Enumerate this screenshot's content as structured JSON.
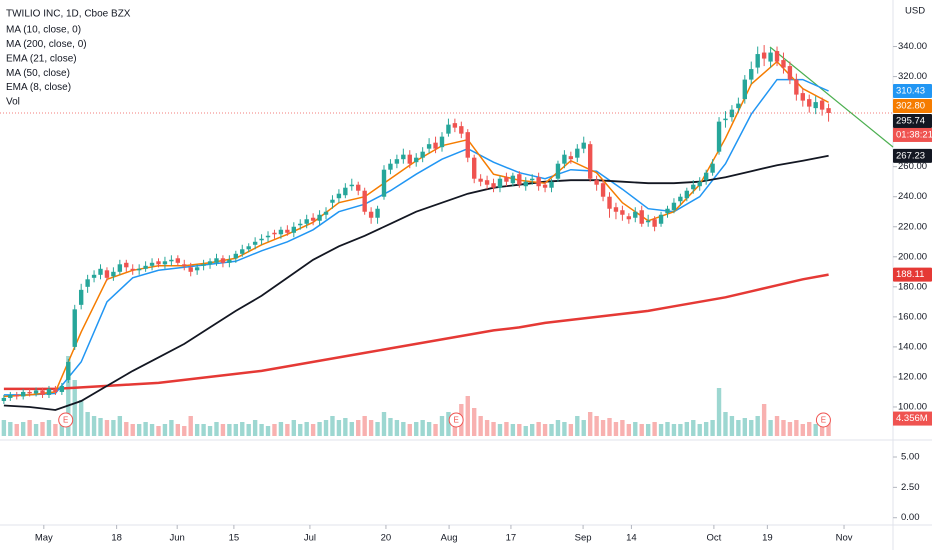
{
  "chart_data": {
    "type": "candlestick",
    "title": "TWILIO INC, 1D, Cboe BZX",
    "currency": "USD",
    "extra_indicator": "MA (10, close, 0)",
    "volume_name": "Vol",
    "countdown": "01:38:21",
    "up_color": "#26a69a",
    "down_color": "#ef5350",
    "open": [
      104,
      106,
      108,
      107,
      110,
      109,
      111,
      108,
      112,
      110,
      118,
      140,
      168,
      180,
      186,
      188,
      191,
      187,
      190,
      196,
      192,
      191,
      192,
      194,
      197,
      195,
      197,
      199,
      195,
      193,
      191,
      194,
      195,
      196,
      199,
      196,
      199,
      202,
      205,
      208,
      211,
      213,
      216,
      215,
      218,
      216,
      221,
      222,
      226,
      224,
      228,
      236,
      239,
      241,
      247,
      248,
      244,
      230,
      226,
      240,
      258,
      262,
      265,
      268,
      263,
      266,
      272,
      276,
      273,
      282,
      289,
      287,
      283,
      266,
      252,
      251,
      249,
      246,
      253,
      249,
      255,
      247,
      251,
      253,
      248,
      246,
      252,
      262,
      267,
      266,
      272,
      275,
      251,
      249,
      240,
      233,
      231,
      227,
      226,
      231,
      223,
      225,
      222,
      229,
      231,
      237,
      239,
      245,
      247,
      251,
      256,
      270,
      291,
      293,
      299,
      305,
      318,
      326,
      336,
      330,
      337,
      331,
      327,
      318,
      309,
      305,
      299,
      304,
      299
    ],
    "high": [
      108,
      110,
      110,
      112,
      112,
      113,
      113,
      114,
      114,
      116,
      132,
      168,
      182,
      188,
      191,
      195,
      193,
      193,
      198,
      198,
      195,
      195,
      197,
      199,
      199,
      200,
      201,
      201,
      198,
      196,
      195,
      198,
      199,
      202,
      201,
      201,
      204,
      208,
      209,
      213,
      215,
      217,
      218,
      220,
      221,
      223,
      225,
      228,
      229,
      231,
      233,
      241,
      245,
      249,
      252,
      250,
      246,
      233,
      234,
      261,
      265,
      268,
      272,
      271,
      269,
      273,
      279,
      280,
      283,
      292,
      292,
      290,
      285,
      268,
      255,
      254,
      252,
      254,
      256,
      256,
      257,
      253,
      255,
      256,
      250,
      252,
      264,
      271,
      270,
      275,
      280,
      277,
      254,
      251,
      243,
      236,
      234,
      229,
      233,
      234,
      228,
      227,
      230,
      234,
      239,
      242,
      246,
      251,
      253,
      258,
      265,
      293,
      297,
      301,
      306,
      321,
      330,
      340,
      341,
      339,
      340,
      336,
      330,
      322,
      312,
      308,
      307,
      306,
      302
    ],
    "low": [
      102,
      104,
      105,
      105,
      107,
      107,
      106,
      106,
      108,
      108,
      116,
      138,
      165,
      176,
      183,
      185,
      184,
      184,
      188,
      190,
      188,
      188,
      190,
      191,
      193,
      192,
      194,
      194,
      191,
      187,
      188,
      191,
      192,
      194,
      193,
      193,
      196,
      200,
      203,
      205,
      208,
      210,
      212,
      212,
      214,
      213,
      218,
      219,
      221,
      221,
      225,
      232,
      236,
      239,
      244,
      241,
      228,
      222,
      222,
      238,
      255,
      259,
      262,
      259,
      260,
      263,
      269,
      269,
      270,
      280,
      283,
      279,
      263,
      249,
      247,
      245,
      243,
      243,
      247,
      247,
      246,
      244,
      248,
      244,
      243,
      243,
      250,
      259,
      262,
      263,
      269,
      250,
      244,
      237,
      226,
      225,
      224,
      222,
      223,
      220,
      220,
      217,
      220,
      226,
      229,
      234,
      237,
      242,
      244,
      248,
      254,
      268,
      286,
      290,
      296,
      302,
      315,
      322,
      327,
      326,
      327,
      322,
      315,
      304,
      300,
      296,
      295,
      294,
      290
    ],
    "close": [
      106,
      108,
      107,
      110,
      109,
      111,
      108,
      112,
      110,
      114,
      130,
      165,
      178,
      185,
      188,
      192,
      186,
      190,
      195,
      193,
      191,
      192,
      194,
      196,
      195,
      197,
      198,
      196,
      194,
      190,
      193,
      195,
      197,
      199,
      196,
      198,
      202,
      205,
      207,
      210,
      212,
      214,
      215,
      218,
      216,
      220,
      222,
      225,
      224,
      228,
      230,
      238,
      242,
      246,
      248,
      244,
      230,
      226,
      232,
      258,
      262,
      265,
      268,
      262,
      266,
      270,
      275,
      272,
      280,
      288,
      286,
      282,
      266,
      252,
      250,
      248,
      246,
      252,
      250,
      254,
      248,
      250,
      252,
      247,
      246,
      250,
      262,
      268,
      265,
      272,
      276,
      252,
      248,
      240,
      232,
      230,
      228,
      225,
      230,
      222,
      224,
      220,
      228,
      232,
      236,
      240,
      244,
      248,
      250,
      256,
      262,
      290,
      292,
      298,
      302,
      318,
      325,
      335,
      332,
      336,
      330,
      326,
      318,
      308,
      304,
      300,
      303,
      298,
      295.74
    ],
    "volume": [
      4,
      3.5,
      3,
      3.5,
      4,
      3,
      3.5,
      4,
      3,
      5,
      20,
      14,
      9,
      6,
      5,
      4.5,
      4,
      4,
      5,
      3.5,
      3,
      3,
      3.5,
      3,
      2.5,
      3,
      4,
      3,
      2.5,
      5,
      3,
      3,
      2.5,
      3.5,
      3,
      3,
      3,
      3.5,
      3,
      4,
      3,
      2.5,
      3,
      3.5,
      3,
      4,
      3,
      3.5,
      3,
      3.5,
      4,
      5,
      4,
      4.5,
      3.5,
      4,
      5,
      4,
      3.5,
      6,
      4.5,
      4,
      3.5,
      3,
      3.5,
      4,
      3.5,
      3,
      5,
      6,
      5,
      8,
      10,
      7,
      5,
      4,
      3.5,
      3,
      3.5,
      3,
      3,
      2.5,
      3,
      3.5,
      3,
      3,
      4,
      3.5,
      3,
      5,
      4,
      6,
      5,
      4,
      4.5,
      3.5,
      4,
      3,
      3.5,
      3,
      3,
      3.5,
      3,
      3.5,
      3,
      3,
      3.5,
      4,
      3,
      3.5,
      4,
      12,
      6,
      5,
      4,
      4.5,
      4,
      5,
      8,
      4,
      5,
      4,
      3.5,
      4,
      3,
      3.5,
      3,
      4,
      4.356
    ],
    "volume_last_label": "4.356M",
    "series": [
      {
        "name": "MA (200, close, 0)",
        "color": "#e53935",
        "width": 2.5,
        "x": [
          0,
          4,
          8,
          12,
          16,
          20,
          24,
          28,
          32,
          36,
          40,
          44,
          48,
          52,
          56,
          60,
          64,
          68,
          72,
          76,
          80,
          84,
          88,
          92,
          96,
          100,
          104,
          108,
          112,
          116,
          120,
          124,
          128
        ],
        "values": [
          112,
          112,
          112,
          113,
          114,
          115,
          116,
          118,
          120,
          122,
          124,
          127,
          130,
          133,
          136,
          139,
          142,
          145,
          148,
          151,
          153,
          156,
          158,
          160,
          162,
          164,
          167,
          170,
          173,
          177,
          181,
          185,
          188.11
        ]
      },
      {
        "name": "EMA (21, close)",
        "color": "#2196f3",
        "width": 1.5,
        "x": [
          0,
          4,
          8,
          12,
          16,
          20,
          24,
          28,
          32,
          36,
          40,
          44,
          48,
          52,
          56,
          60,
          64,
          68,
          72,
          76,
          80,
          84,
          88,
          92,
          96,
          100,
          104,
          108,
          112,
          116,
          120,
          124,
          128
        ],
        "values": [
          108,
          108,
          109,
          130,
          170,
          186,
          191,
          193,
          195,
          197,
          204,
          210,
          218,
          230,
          235,
          244,
          255,
          265,
          272,
          263,
          256,
          252,
          258,
          257,
          245,
          232,
          230,
          240,
          262,
          295,
          318,
          318,
          310.43
        ]
      },
      {
        "name": "MA (50, close)",
        "color": "#131722",
        "width": 1.8,
        "x": [
          0,
          4,
          8,
          12,
          16,
          20,
          24,
          28,
          32,
          36,
          40,
          44,
          48,
          52,
          56,
          60,
          64,
          68,
          72,
          76,
          80,
          84,
          88,
          92,
          96,
          100,
          104,
          108,
          112,
          116,
          120,
          124,
          128
        ],
        "values": [
          101,
          100,
          98,
          104,
          114,
          124,
          133,
          142,
          153,
          164,
          174,
          186,
          198,
          207,
          214,
          222,
          230,
          236,
          242,
          246,
          248,
          250,
          251,
          251,
          250,
          249,
          249,
          250,
          253,
          257,
          261,
          264,
          267.23
        ]
      },
      {
        "name": "EMA (8, close)",
        "color": "#f57c00",
        "width": 1.5,
        "x": [
          0,
          4,
          8,
          12,
          16,
          20,
          24,
          28,
          32,
          36,
          40,
          44,
          48,
          52,
          56,
          60,
          64,
          68,
          72,
          76,
          80,
          84,
          88,
          92,
          96,
          100,
          104,
          108,
          112,
          116,
          120,
          124,
          128
        ],
        "values": [
          107,
          108,
          110,
          150,
          185,
          191,
          194,
          194,
          196,
          199,
          208,
          215,
          223,
          236,
          240,
          252,
          264,
          274,
          278,
          255,
          251,
          249,
          264,
          256,
          236,
          224,
          230,
          248,
          279,
          315,
          330,
          312,
          302.8
        ],
        "last_label": "302.80"
      }
    ],
    "events": [
      {
        "x": 9.6,
        "label": "E"
      },
      {
        "x": 70.2,
        "label": "E"
      },
      {
        "x": 127.2,
        "label": "E"
      }
    ],
    "xlim": [
      -0.6,
      138
    ],
    "xticks": [
      {
        "value": 6.2,
        "label": "May"
      },
      {
        "value": 17.5,
        "label": "18"
      },
      {
        "value": 26.9,
        "label": "Jun"
      },
      {
        "value": 35.7,
        "label": "15"
      },
      {
        "value": 47.5,
        "label": "Jul"
      },
      {
        "value": 59.3,
        "label": "20"
      },
      {
        "value": 69.1,
        "label": "Aug"
      },
      {
        "value": 78.7,
        "label": "17"
      },
      {
        "value": 89.9,
        "label": "Sep"
      },
      {
        "value": 97.4,
        "label": "14"
      },
      {
        "value": 110.2,
        "label": "Oct"
      },
      {
        "value": 118.5,
        "label": "19"
      },
      {
        "value": 130.4,
        "label": "Nov"
      }
    ],
    "ylim": [
      78,
      371
    ],
    "yticks": [
      {
        "value": 340,
        "label": "340.00"
      },
      {
        "value": 320,
        "label": "320.00"
      },
      {
        "value": 260,
        "label": "260.00"
      },
      {
        "value": 240,
        "label": "240.00"
      },
      {
        "value": 220,
        "label": "220.00"
      },
      {
        "value": 200,
        "label": "200.00"
      },
      {
        "value": 180,
        "label": "180.00"
      },
      {
        "value": 160,
        "label": "160.00"
      },
      {
        "value": 140,
        "label": "140.00"
      },
      {
        "value": 120,
        "label": "120.00"
      },
      {
        "value": 100,
        "label": "100.00"
      }
    ],
    "y2lim": [
      0,
      25
    ],
    "lower_pane": {
      "ylim": [
        -0.6,
        6.4
      ],
      "yticks": [
        {
          "value": 5,
          "label": "5.00"
        },
        {
          "value": 2.5,
          "label": "2.50"
        },
        {
          "value": 0,
          "label": "0.00"
        }
      ]
    }
  }
}
